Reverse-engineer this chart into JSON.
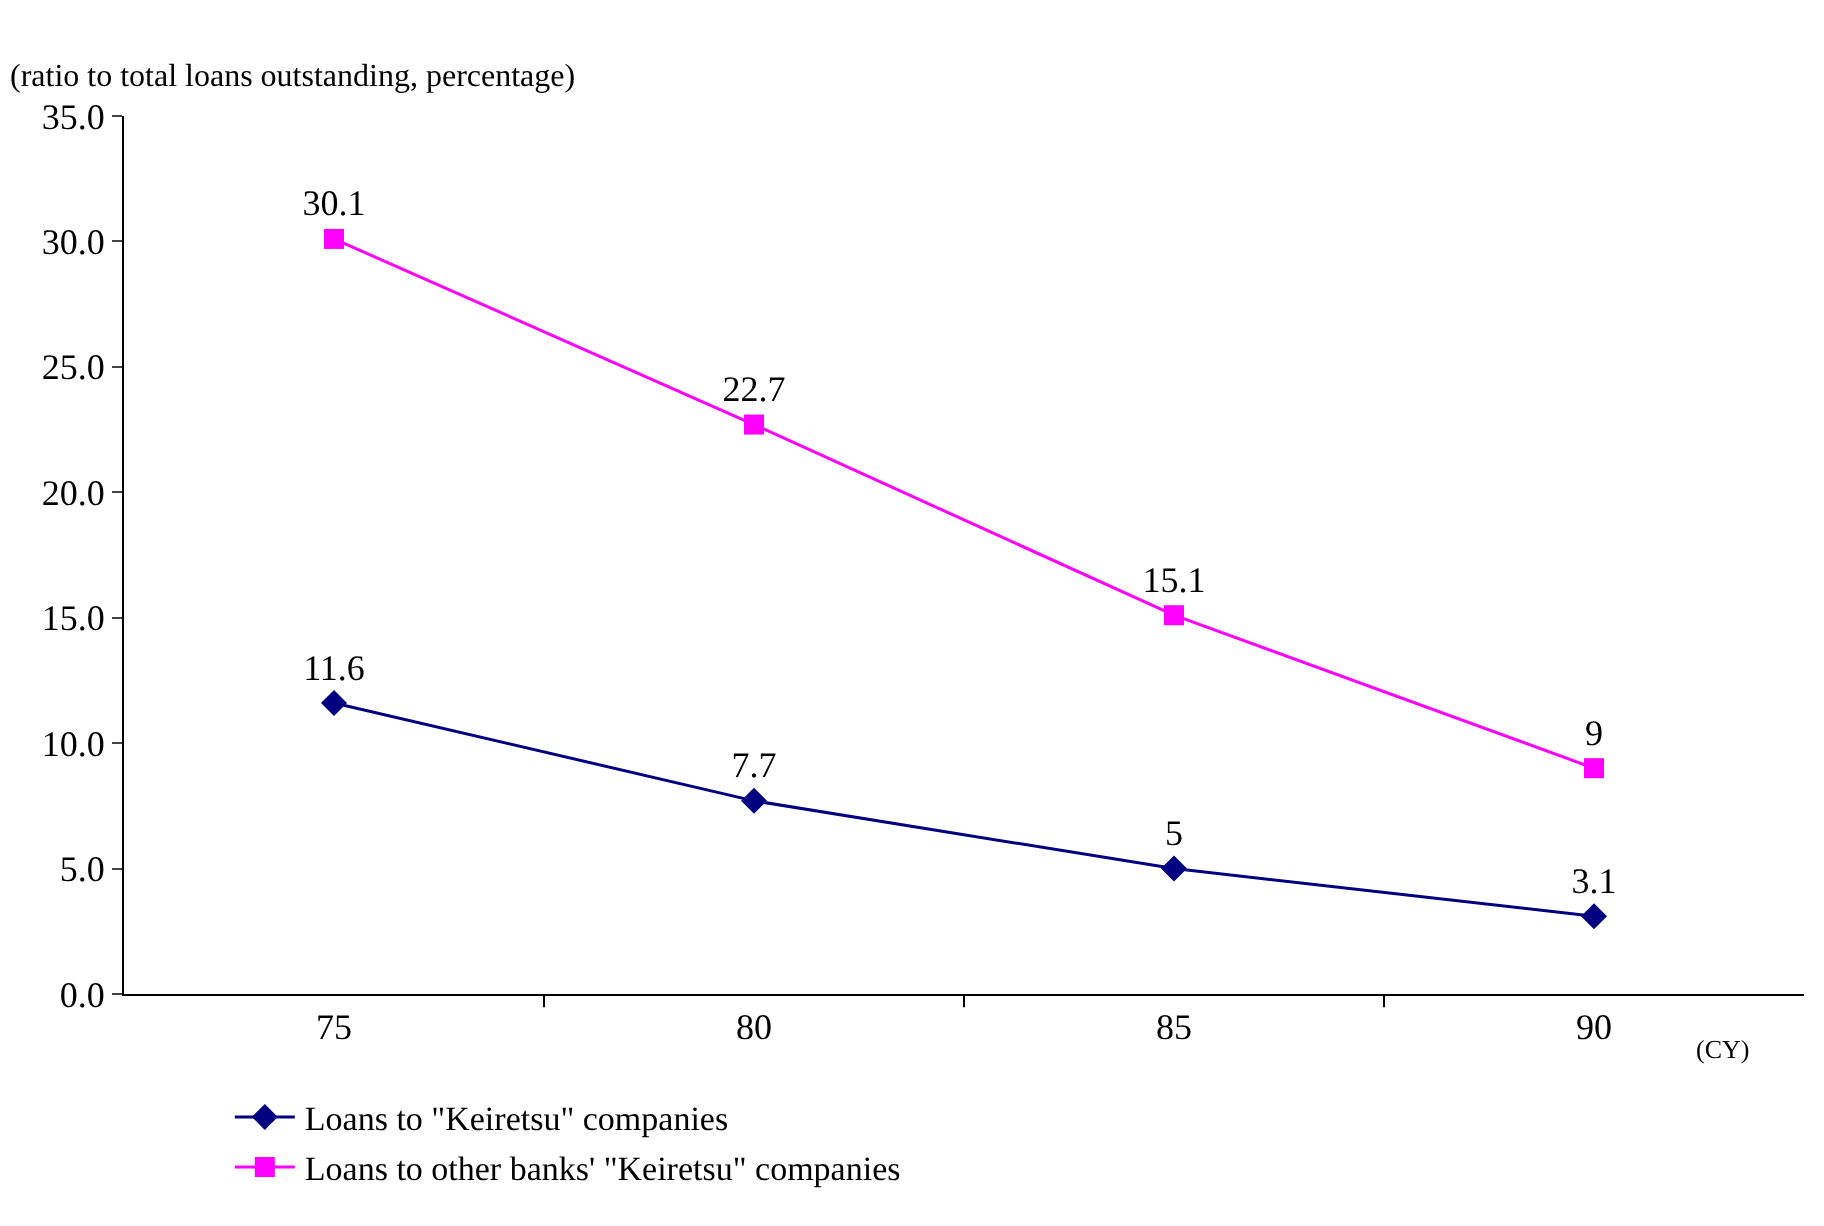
{
  "chart_data": {
    "type": "line",
    "ylabel": "(ratio to total loans outstanding, percentage)",
    "xlabel": "(CY)",
    "categories": [
      "75",
      "80",
      "85",
      "90"
    ],
    "series": [
      {
        "name": "Loans to \"Keiretsu\" companies",
        "color": "#000080",
        "marker": "diamond",
        "values": [
          11.6,
          7.7,
          5,
          3.1
        ]
      },
      {
        "name": "Loans to other banks' \"Keiretsu\" companies",
        "color": "#ff00ff",
        "marker": "square",
        "values": [
          30.1,
          22.7,
          15.1,
          9
        ]
      }
    ],
    "ylim": [
      0,
      35
    ],
    "yticks": [
      {
        "value": 0,
        "label": "0.0"
      },
      {
        "value": 5,
        "label": "5.0"
      },
      {
        "value": 10,
        "label": "10.0"
      },
      {
        "value": 15,
        "label": "15.0"
      },
      {
        "value": 20,
        "label": "20.0"
      },
      {
        "value": 25,
        "label": "25.0"
      },
      {
        "value": 30,
        "label": "30.0"
      },
      {
        "value": 35,
        "label": "35.0"
      }
    ],
    "grid": false,
    "legend": "bottom left",
    "data_labels": true,
    "line_style": "solid"
  }
}
